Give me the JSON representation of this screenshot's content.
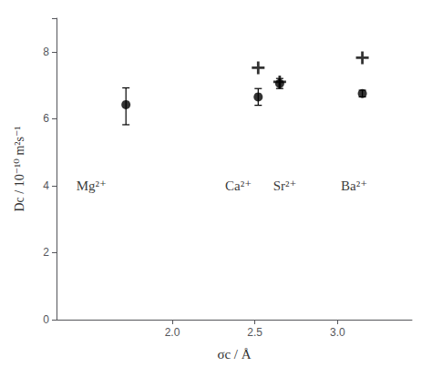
{
  "chart_data": {
    "type": "scatter",
    "xlabel": "σc / Å",
    "ylabel": "Dc / 10⁻¹⁰ m²s⁻¹",
    "xlim": [
      1.3,
      3.45
    ],
    "ylim": [
      0,
      9
    ],
    "xticks": [
      {
        "value": 2.0,
        "label": "2.0"
      },
      {
        "value": 2.5,
        "label": "2.5"
      },
      {
        "value": 3.0,
        "label": "3.0"
      }
    ],
    "yticks": [
      0,
      2,
      4,
      6,
      8
    ],
    "grid": false,
    "series": [
      {
        "type": "scatter",
        "marker": "o",
        "color": "black",
        "x": [
          1.72,
          2.52,
          2.65,
          3.15
        ],
        "values": [
          6.42,
          6.65,
          7.05,
          6.75
        ],
        "yerr_lo": [
          0.6,
          0.25,
          0.15,
          0.1
        ],
        "yerr_hi": [
          0.5,
          0.25,
          0.15,
          0.1
        ]
      },
      {
        "type": "scatter",
        "marker": "+",
        "color": "black",
        "x": [
          2.52,
          2.65,
          3.15
        ],
        "values": [
          7.52,
          7.1,
          7.82
        ]
      }
    ],
    "annotations": [
      {
        "x": 1.42,
        "y": 4.0,
        "text": "Mg²⁺"
      },
      {
        "x": 2.32,
        "y": 4.0,
        "text": "Ca²⁺"
      },
      {
        "x": 2.61,
        "y": 4.0,
        "text": "Sr²⁺"
      },
      {
        "x": 3.02,
        "y": 4.0,
        "text": "Ba²⁺"
      }
    ]
  }
}
